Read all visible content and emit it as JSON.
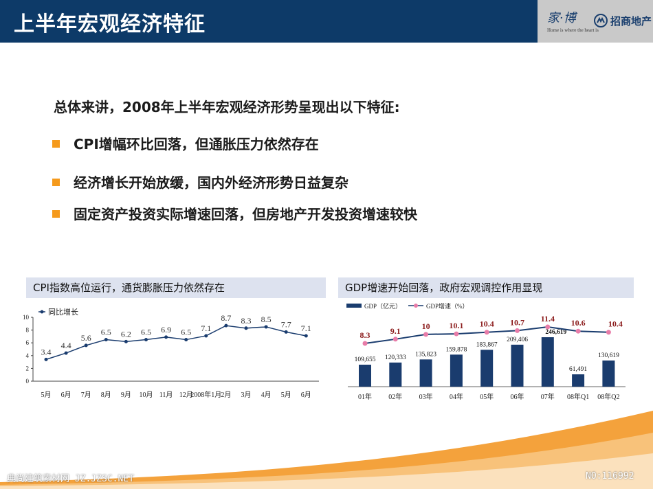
{
  "header": {
    "title": "上半年宏观经济特征",
    "logo_calligraphy": "家·博",
    "logo_tagline": "Home is where the heart is",
    "logo_company": "招商地产"
  },
  "intro": "总体来讲，2008年上半年宏观经济形势呈现出以下特征:",
  "bullets": [
    "CPI增幅环比回落，但通胀压力依然存在",
    "经济增长开始放缓，国内外经济形势日益复杂",
    "固定资产投资实际增速回落，但房地产开发投资增速较快"
  ],
  "colors": {
    "header_bg": "#0d3a68",
    "bullet": "#f59a1c",
    "bar": "#1a3c6e",
    "gdp_line": "#1a3c6e",
    "gdp_dot": "#e87ca8",
    "growth_label": "#8b1a1a"
  },
  "chart_data": [
    {
      "type": "line",
      "title": "CPI指数高位运行，通货膨胀压力依然存在",
      "legend": "同比增长",
      "categories": [
        "5月",
        "6月",
        "7月",
        "8月",
        "9月",
        "10月",
        "11月",
        "12月",
        "2008年1月",
        "2月",
        "3月",
        "4月",
        "5月",
        "6月"
      ],
      "values": [
        3.4,
        4.4,
        5.6,
        6.5,
        6.2,
        6.5,
        6.9,
        6.5,
        7.1,
        8.7,
        8.3,
        8.5,
        7.7,
        7.1
      ],
      "labels": [
        "3.4",
        "4.4",
        "5.6",
        "6.5",
        "6.2",
        "6.5",
        "6.9",
        "6.5",
        "7.1",
        "8.7",
        "8.3",
        "8.5",
        "7.7",
        "7.1"
      ],
      "ylim": [
        0,
        10
      ],
      "yticks": [
        "0",
        "2",
        "4",
        "6",
        "8",
        "10"
      ],
      "grid": false
    },
    {
      "type": "bar",
      "title": "GDP增速开始回落，政府宏观调控作用显现",
      "legend_bar": "GDP（亿元）",
      "legend_line": "GDP增速（%）",
      "categories": [
        "01年",
        "02年",
        "03年",
        "04年",
        "05年",
        "06年",
        "07年",
        "08年Q1",
        "08年Q2"
      ],
      "bar_values": [
        109655,
        120333,
        135823,
        159878,
        183867,
        209406,
        246619,
        61491,
        130619
      ],
      "bar_labels": [
        "109,655",
        "120,333",
        "135,823",
        "159,878",
        "183,867",
        "209,406",
        "246,619",
        "61,491",
        "130,619"
      ],
      "growth_values": [
        8.3,
        9.1,
        10,
        10.1,
        10.4,
        10.7,
        11.4,
        10.6,
        10.4
      ],
      "growth_labels": [
        "8.3",
        "9.1",
        "10",
        "10.1",
        "10.4",
        "10.7",
        "11.4",
        "10.6",
        "10.4"
      ]
    }
  ],
  "footer": {
    "left": "典尚建筑素材网 JZ.JZSC.NET",
    "right": "NO:116992"
  }
}
